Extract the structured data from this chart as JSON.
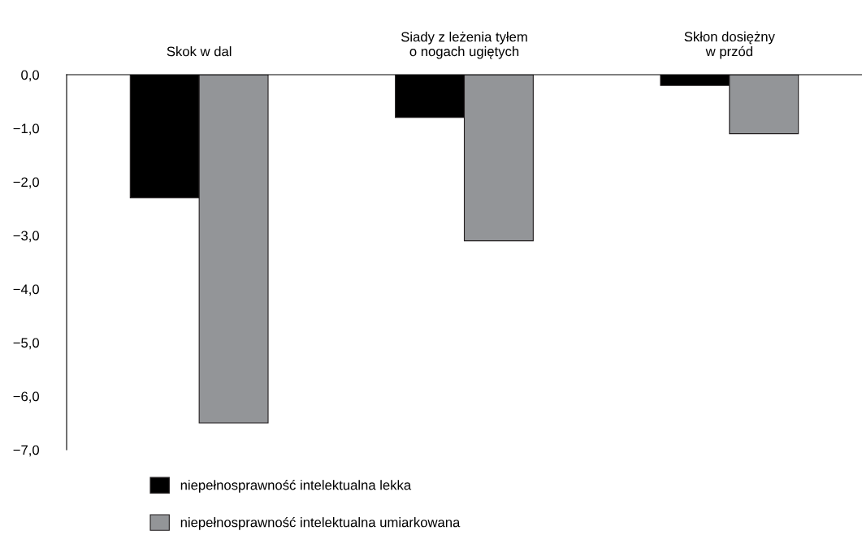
{
  "chart_data": {
    "type": "bar",
    "categories": [
      "Skok w dal",
      "Siady z leżenia tyłem\no nogach ugiętych",
      "Skłon dosiężny\nw przód"
    ],
    "series": [
      {
        "name": "niepełnosprawność intelektualna lekka",
        "color": "#000000",
        "values": [
          -2.3,
          -0.8,
          -0.2
        ]
      },
      {
        "name": "niepełnosprawność intelektualna umiarkowana",
        "color": "#939598",
        "values": [
          -6.5,
          -3.1,
          -1.1
        ]
      }
    ],
    "ylim": [
      -7,
      0
    ],
    "yticks": [
      {
        "value": 0,
        "label": "0,0"
      },
      {
        "value": -1,
        "label": "−1,0"
      },
      {
        "value": -2,
        "label": "−2,0"
      },
      {
        "value": -3,
        "label": "−3,0"
      },
      {
        "value": -4,
        "label": "−4,0"
      },
      {
        "value": -5,
        "label": "−5,0"
      },
      {
        "value": -6,
        "label": "−6,0"
      },
      {
        "value": -7,
        "label": "−7,0"
      }
    ],
    "grid": false,
    "legend": "bottom"
  }
}
